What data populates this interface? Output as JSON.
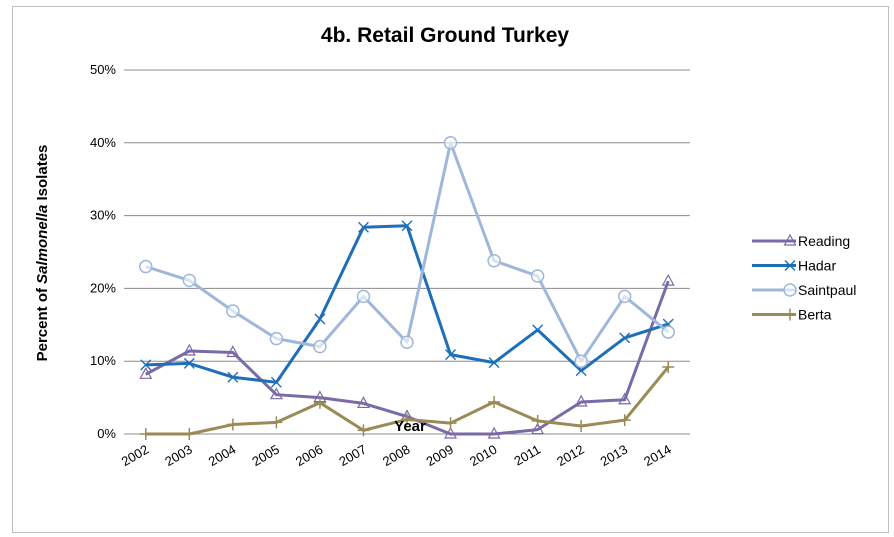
{
  "chart_data": {
    "type": "line",
    "title": "4b. Retail Ground Turkey",
    "xlabel": "Year",
    "ylabel_prefix": "Percent of ",
    "ylabel_italic": "Salmonella",
    "ylabel_suffix": " Isolates",
    "categories": [
      "2002",
      "2003",
      "2004",
      "2005",
      "2006",
      "2007",
      "2008",
      "2009",
      "2010",
      "2011",
      "2012",
      "2013",
      "2014"
    ],
    "yticks": [
      "0%",
      "10%",
      "20%",
      "30%",
      "40%",
      "50%"
    ],
    "ylim": [
      0,
      50
    ],
    "grid": "horizontal",
    "legend_position": "right",
    "series": [
      {
        "name": "Reading",
        "color": "#7b6aa8",
        "marker": "triangle",
        "values": [
          8.2,
          11.4,
          11.2,
          5.4,
          5.0,
          4.2,
          2.4,
          0.0,
          0.0,
          0.6,
          4.4,
          4.7,
          21.0
        ]
      },
      {
        "name": "Hadar",
        "color": "#1f6fb8",
        "marker": "x",
        "values": [
          9.5,
          9.7,
          7.8,
          7.1,
          15.8,
          28.4,
          28.6,
          10.9,
          9.8,
          14.3,
          8.7,
          13.2,
          15.1
        ]
      },
      {
        "name": "Saintpaul",
        "color": "#9fb8da",
        "marker": "circle",
        "values": [
          23.0,
          21.1,
          16.9,
          13.1,
          12.0,
          18.9,
          12.6,
          40.0,
          23.8,
          21.7,
          10.0,
          18.9,
          14.0
        ]
      },
      {
        "name": "Berta",
        "color": "#9a8a55",
        "marker": "plus",
        "values": [
          0.0,
          0.0,
          1.3,
          1.6,
          4.3,
          0.5,
          2.0,
          1.5,
          4.4,
          1.8,
          1.1,
          1.9,
          9.2
        ]
      }
    ]
  }
}
